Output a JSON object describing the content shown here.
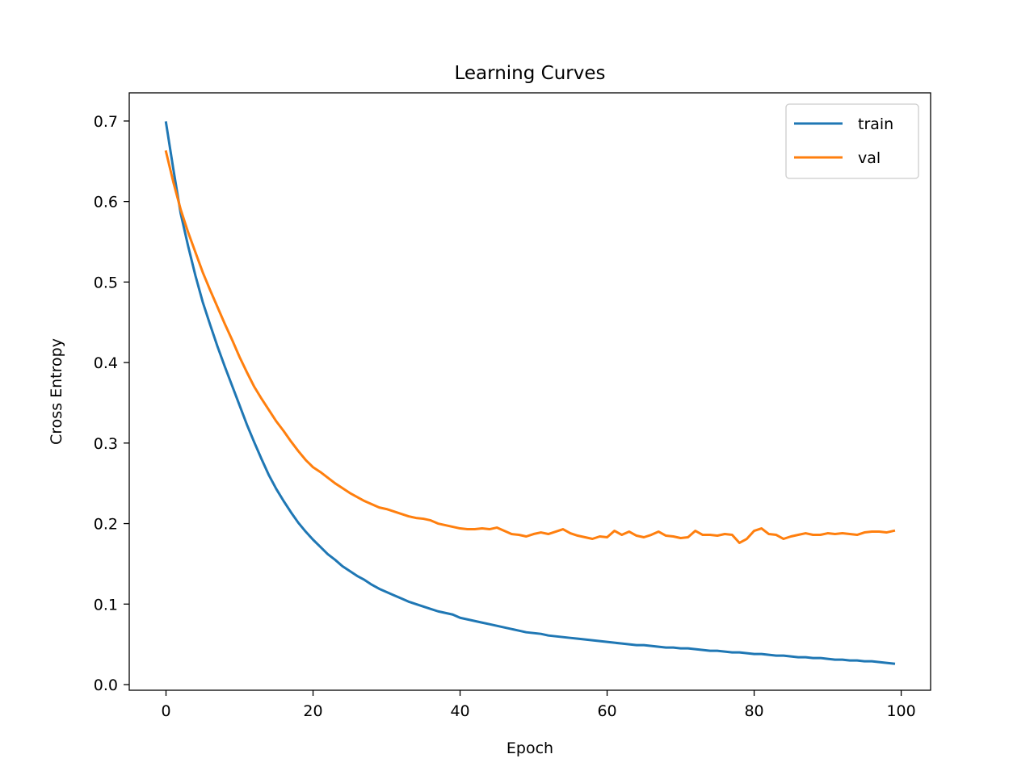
{
  "chart_data": {
    "type": "line",
    "title": "Learning Curves",
    "xlabel": "Epoch",
    "ylabel": "Cross Entropy",
    "xlim": [
      -5,
      104
    ],
    "ylim": [
      -0.007,
      0.735
    ],
    "xticks": [
      0,
      20,
      40,
      60,
      80,
      100
    ],
    "yticks": [
      0.0,
      0.1,
      0.2,
      0.3,
      0.4,
      0.5,
      0.6,
      0.7
    ],
    "grid": false,
    "legend_position": "top-right",
    "colors": {
      "train": "#1f77b4",
      "val": "#ff7f0e"
    },
    "series": [
      {
        "name": "train",
        "x": [
          0,
          1,
          2,
          3,
          4,
          5,
          6,
          7,
          8,
          9,
          10,
          11,
          12,
          13,
          14,
          15,
          16,
          17,
          18,
          19,
          20,
          21,
          22,
          23,
          24,
          25,
          26,
          27,
          28,
          29,
          30,
          31,
          32,
          33,
          34,
          35,
          36,
          37,
          38,
          39,
          40,
          41,
          42,
          43,
          44,
          45,
          46,
          47,
          48,
          49,
          50,
          51,
          52,
          53,
          54,
          55,
          56,
          57,
          58,
          59,
          60,
          61,
          62,
          63,
          64,
          65,
          66,
          67,
          68,
          69,
          70,
          71,
          72,
          73,
          74,
          75,
          76,
          77,
          78,
          79,
          80,
          81,
          82,
          83,
          84,
          85,
          86,
          87,
          88,
          89,
          90,
          91,
          92,
          93,
          94,
          95,
          96,
          97,
          98,
          99
        ],
        "y": [
          0.698,
          0.64,
          0.585,
          0.545,
          0.508,
          0.475,
          0.447,
          0.42,
          0.395,
          0.371,
          0.347,
          0.323,
          0.301,
          0.28,
          0.26,
          0.243,
          0.228,
          0.214,
          0.201,
          0.19,
          0.18,
          0.171,
          0.162,
          0.155,
          0.147,
          0.141,
          0.135,
          0.13,
          0.124,
          0.119,
          0.115,
          0.111,
          0.107,
          0.103,
          0.1,
          0.097,
          0.094,
          0.091,
          0.089,
          0.087,
          0.083,
          0.081,
          0.079,
          0.077,
          0.075,
          0.073,
          0.071,
          0.069,
          0.067,
          0.065,
          0.064,
          0.063,
          0.061,
          0.06,
          0.059,
          0.058,
          0.057,
          0.056,
          0.055,
          0.054,
          0.053,
          0.052,
          0.051,
          0.05,
          0.049,
          0.049,
          0.048,
          0.047,
          0.046,
          0.046,
          0.045,
          0.045,
          0.044,
          0.043,
          0.042,
          0.042,
          0.041,
          0.04,
          0.04,
          0.039,
          0.038,
          0.038,
          0.037,
          0.036,
          0.036,
          0.035,
          0.034,
          0.034,
          0.033,
          0.033,
          0.032,
          0.031,
          0.031,
          0.03,
          0.03,
          0.029,
          0.029,
          0.028,
          0.027,
          0.026
        ]
      },
      {
        "name": "val",
        "x": [
          0,
          1,
          2,
          3,
          4,
          5,
          6,
          7,
          8,
          9,
          10,
          11,
          12,
          13,
          14,
          15,
          16,
          17,
          18,
          19,
          20,
          21,
          22,
          23,
          24,
          25,
          26,
          27,
          28,
          29,
          30,
          31,
          32,
          33,
          34,
          35,
          36,
          37,
          38,
          39,
          40,
          41,
          42,
          43,
          44,
          45,
          46,
          47,
          48,
          49,
          50,
          51,
          52,
          53,
          54,
          55,
          56,
          57,
          58,
          59,
          60,
          61,
          62,
          63,
          64,
          65,
          66,
          67,
          68,
          69,
          70,
          71,
          72,
          73,
          74,
          75,
          76,
          77,
          78,
          79,
          80,
          81,
          82,
          83,
          84,
          85,
          86,
          87,
          88,
          89,
          90,
          91,
          92,
          93,
          94,
          95,
          96,
          97,
          98,
          99
        ],
        "y": [
          0.662,
          0.624,
          0.59,
          0.562,
          0.537,
          0.512,
          0.49,
          0.469,
          0.448,
          0.428,
          0.407,
          0.388,
          0.37,
          0.355,
          0.341,
          0.327,
          0.315,
          0.302,
          0.29,
          0.279,
          0.27,
          0.264,
          0.257,
          0.25,
          0.244,
          0.238,
          0.233,
          0.228,
          0.224,
          0.22,
          0.218,
          0.215,
          0.212,
          0.209,
          0.207,
          0.206,
          0.204,
          0.2,
          0.198,
          0.196,
          0.194,
          0.193,
          0.193,
          0.194,
          0.193,
          0.195,
          0.191,
          0.187,
          0.186,
          0.184,
          0.187,
          0.189,
          0.187,
          0.19,
          0.193,
          0.188,
          0.185,
          0.183,
          0.181,
          0.184,
          0.183,
          0.191,
          0.186,
          0.19,
          0.185,
          0.183,
          0.186,
          0.19,
          0.185,
          0.184,
          0.182,
          0.183,
          0.191,
          0.186,
          0.186,
          0.185,
          0.187,
          0.186,
          0.176,
          0.181,
          0.191,
          0.194,
          0.187,
          0.186,
          0.181,
          0.184,
          0.186,
          0.188,
          0.186,
          0.186,
          0.188,
          0.187,
          0.188,
          0.187,
          0.186,
          0.189,
          0.19,
          0.19,
          0.189,
          0.191
        ]
      }
    ]
  }
}
